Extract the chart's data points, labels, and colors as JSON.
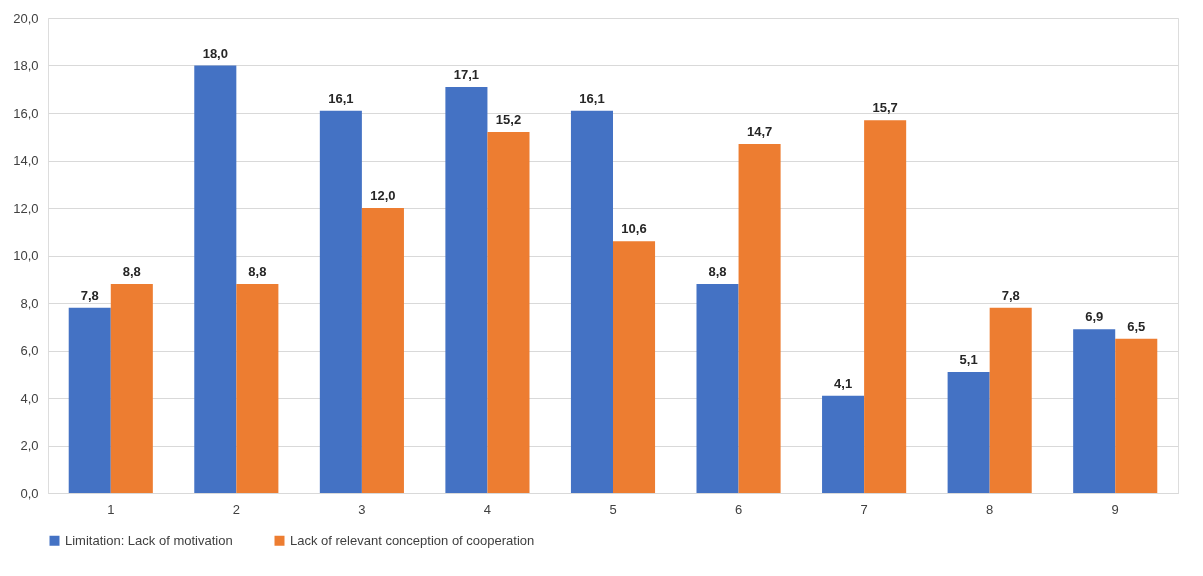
{
  "chart_data": {
    "type": "bar",
    "categories": [
      "1",
      "2",
      "3",
      "4",
      "5",
      "6",
      "7",
      "8",
      "9"
    ],
    "series": [
      {
        "name": "Limitation: Lack of motivation",
        "color": "#4472c4",
        "values": [
          7.8,
          18.0,
          16.1,
          17.1,
          16.1,
          8.8,
          4.1,
          5.1,
          6.9
        ],
        "value_labels": [
          "7,8",
          "18,0",
          "16,1",
          "17,1",
          "16,1",
          "8,8",
          "4,1",
          "5,1",
          "6,9"
        ]
      },
      {
        "name": "Lack of relevant conception of cooperation",
        "color": "#ed7d31",
        "values": [
          8.8,
          8.8,
          12.0,
          15.2,
          10.6,
          14.7,
          15.7,
          7.8,
          6.5
        ],
        "value_labels": [
          "8,8",
          "8,8",
          "12,0",
          "15,2",
          "10,6",
          "14,7",
          "15,7",
          "7,8",
          "6,5"
        ]
      }
    ],
    "ylim": [
      0,
      20
    ],
    "yticks": [
      {
        "value": 0,
        "label": "0,0"
      },
      {
        "value": 2,
        "label": "2,0"
      },
      {
        "value": 4,
        "label": "4,0"
      },
      {
        "value": 6,
        "label": "6,0"
      },
      {
        "value": 8,
        "label": "8,0"
      },
      {
        "value": 10,
        "label": "10,0"
      },
      {
        "value": 12,
        "label": "12,0"
      },
      {
        "value": 14,
        "label": "14,0"
      },
      {
        "value": 16,
        "label": "16,0"
      },
      {
        "value": 18,
        "label": "18,0"
      },
      {
        "value": 20,
        "label": "20,0"
      }
    ],
    "grid": "y",
    "legend": "bottom"
  }
}
